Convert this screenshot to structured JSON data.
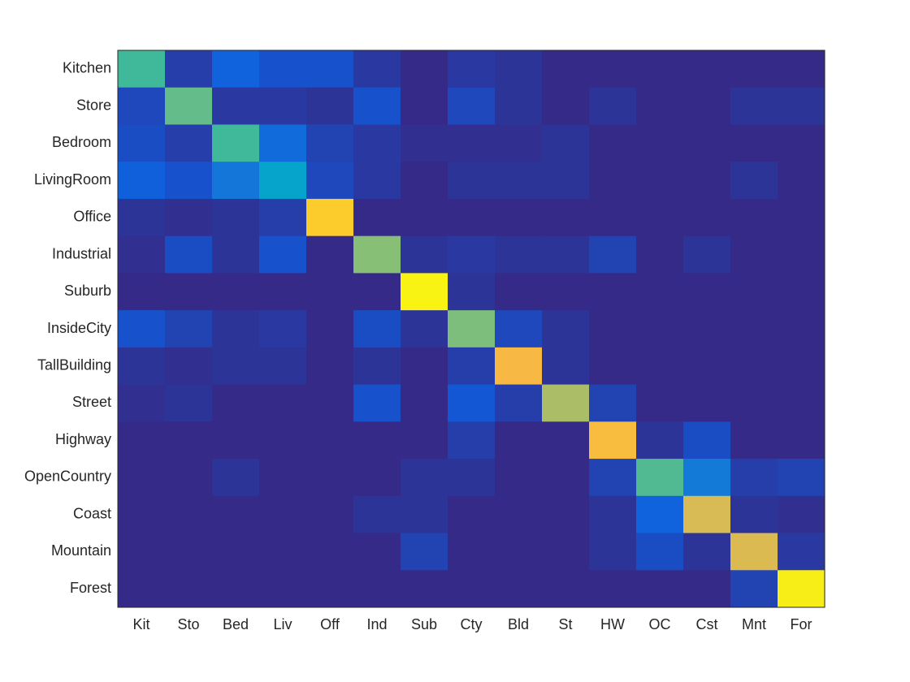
{
  "chart_data": {
    "type": "heatmap",
    "colormap": "parula",
    "clim": [
      0,
      1
    ],
    "x_categories": [
      "Kit",
      "Sto",
      "Bed",
      "Liv",
      "Off",
      "Ind",
      "Sub",
      "Cty",
      "Bld",
      "St",
      "HW",
      "OC",
      "Cst",
      "Mnt",
      "For"
    ],
    "y_categories": [
      "Kitchen",
      "Store",
      "Bedroom",
      "LivingRoom",
      "Office",
      "Industrial",
      "Suburb",
      "InsideCity",
      "TallBuilding",
      "Street",
      "Highway",
      "OpenCountry",
      "Coast",
      "Mountain",
      "Forest"
    ],
    "z": [
      [
        0.42,
        0.04,
        0.12,
        0.08,
        0.08,
        0.03,
        0,
        0.03,
        0.02,
        0,
        0,
        0,
        0,
        0,
        0
      ],
      [
        0.06,
        0.46,
        0.03,
        0.03,
        0.02,
        0.08,
        0,
        0.06,
        0.02,
        0,
        0.02,
        0,
        0,
        0.02,
        0.02
      ],
      [
        0.07,
        0.04,
        0.42,
        0.14,
        0.05,
        0.03,
        0.01,
        0.01,
        0.01,
        0.02,
        0,
        0,
        0,
        0,
        0
      ],
      [
        0.11,
        0.08,
        0.17,
        0.3,
        0.06,
        0.03,
        0,
        0.02,
        0.02,
        0.02,
        0,
        0,
        0,
        0.02,
        0
      ],
      [
        0.02,
        0.01,
        0.02,
        0.04,
        0.8,
        0,
        0,
        0,
        0,
        0,
        0,
        0,
        0,
        0,
        0
      ],
      [
        0.01,
        0.07,
        0.02,
        0.08,
        0,
        0.5,
        0.02,
        0.03,
        0.02,
        0.02,
        0.05,
        0,
        0.02,
        0,
        0
      ],
      [
        0,
        0,
        0,
        0,
        0,
        0,
        0.97,
        0.02,
        0,
        0,
        0,
        0,
        0,
        0,
        0
      ],
      [
        0.08,
        0.05,
        0.02,
        0.03,
        0,
        0.07,
        0.02,
        0.49,
        0.06,
        0.02,
        0,
        0,
        0,
        0,
        0
      ],
      [
        0.02,
        0.01,
        0.02,
        0.02,
        0,
        0.02,
        0,
        0.04,
        0.7,
        0.02,
        0,
        0,
        0,
        0,
        0
      ],
      [
        0.01,
        0.02,
        0,
        0,
        0,
        0.08,
        0,
        0.09,
        0.04,
        0.55,
        0.05,
        0,
        0,
        0,
        0
      ],
      [
        0,
        0,
        0,
        0,
        0,
        0,
        0,
        0.04,
        0,
        0,
        0.72,
        0.02,
        0.07,
        0,
        0
      ],
      [
        0,
        0,
        0.02,
        0,
        0,
        0,
        0.02,
        0.02,
        0,
        0,
        0.05,
        0.44,
        0.18,
        0.04,
        0.05
      ],
      [
        0,
        0,
        0,
        0,
        0,
        0.02,
        0.02,
        0,
        0,
        0,
        0.02,
        0.12,
        0.62,
        0.02,
        0.01
      ],
      [
        0,
        0,
        0,
        0,
        0,
        0,
        0.05,
        0,
        0,
        0,
        0.02,
        0.07,
        0.02,
        0.63,
        0.03
      ],
      [
        0,
        0,
        0,
        0,
        0,
        0,
        0,
        0,
        0,
        0,
        0,
        0,
        0,
        0.05,
        0.95
      ]
    ]
  }
}
